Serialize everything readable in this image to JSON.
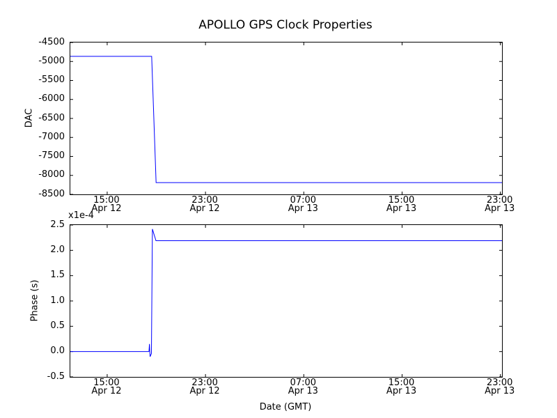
{
  "figure": {
    "title": "APOLLO GPS Clock Properties",
    "xlabel": "Date (GMT)",
    "background": "#ffffff",
    "axis_color": "#000000",
    "line_color": "#0000ff"
  },
  "chart_data": [
    {
      "type": "line",
      "name": "dac-vs-time",
      "ylabel": "DAC",
      "x_unit": "hours since Apr 12 00:00 GMT",
      "xlim": [
        12.0,
        47.13
      ],
      "ylim": [
        -8500,
        -4500
      ],
      "yticks": [
        -4500,
        -5000,
        -5500,
        -6000,
        -6500,
        -7000,
        -7500,
        -8000,
        -8500
      ],
      "ytick_labels": [
        "-4500",
        "-5000",
        "-5500",
        "-6000",
        "-6500",
        "-7000",
        "-7500",
        "-8000",
        "-8500"
      ],
      "xticks": [
        15,
        23,
        31,
        39,
        47
      ],
      "xtick_labels": [
        "15:00\nApr 12",
        "23:00\nApr 12",
        "07:00\nApr 13",
        "15:00\nApr 13",
        "23:00\nApr 13"
      ],
      "grid": false,
      "legend": null,
      "series": [
        {
          "name": "DAC",
          "x": [
            12.0,
            18.62,
            18.98,
            47.13
          ],
          "y": [
            -4865,
            -4865,
            -8190,
            -8190
          ]
        }
      ]
    },
    {
      "type": "line",
      "name": "phase-vs-time",
      "ylabel": "Phase (s)",
      "offset_text": "x1e-4",
      "y_unit": "1e-4 s",
      "x_unit": "hours since Apr 12 00:00 GMT",
      "xlim": [
        12.0,
        47.13
      ],
      "ylim": [
        -0.5,
        2.5
      ],
      "yticks": [
        2.5,
        2.0,
        1.5,
        1.0,
        0.5,
        0.0,
        -0.5
      ],
      "ytick_labels": [
        "2.5",
        "2.0",
        "1.5",
        "1.0",
        "0.5",
        "0.0",
        "-0.5"
      ],
      "xticks": [
        15,
        23,
        31,
        39,
        47
      ],
      "xtick_labels": [
        "15:00\nApr 12",
        "23:00\nApr 12",
        "07:00\nApr 13",
        "15:00\nApr 13",
        "23:00\nApr 13"
      ],
      "grid": false,
      "legend": null,
      "series": [
        {
          "name": "Phase",
          "x": [
            12.0,
            18.4,
            18.44,
            18.49,
            18.6,
            18.68,
            18.97,
            47.13
          ],
          "y": [
            0.0,
            0.0,
            0.15,
            -0.1,
            -0.04,
            2.42,
            2.19,
            2.19
          ]
        }
      ]
    }
  ]
}
